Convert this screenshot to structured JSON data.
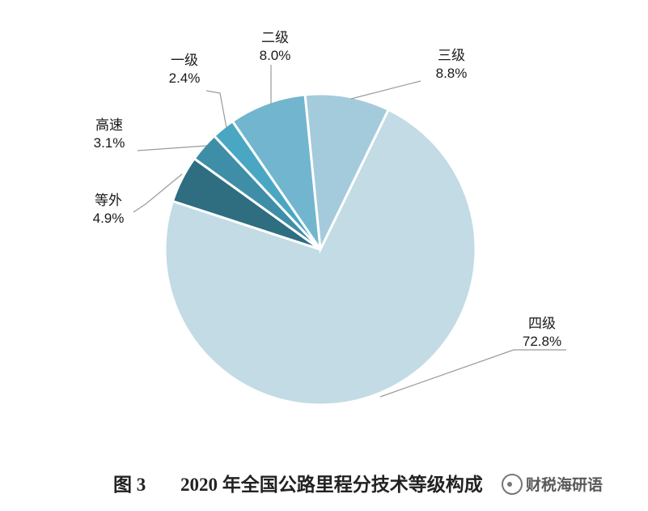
{
  "chart_data": {
    "type": "pie",
    "title": "",
    "categories": [
      "四级",
      "三级",
      "二级",
      "一级",
      "高速",
      "等外"
    ],
    "values": [
      72.8,
      8.8,
      8.0,
      2.4,
      3.1,
      4.9
    ],
    "value_labels": [
      "72.8%",
      "8.8%",
      "8.0%",
      "2.4%",
      "3.1%",
      "4.9%"
    ],
    "colors": [
      "#c2dbe4",
      "#a4cbdb",
      "#72b5cf",
      "#4aa7c3",
      "#3e8ea7",
      "#2f6d80"
    ]
  },
  "caption": {
    "figure_number": "图 3",
    "text": "2020 年全国公路里程分技术等级构成"
  },
  "watermark": {
    "text": "财税海研语"
  }
}
